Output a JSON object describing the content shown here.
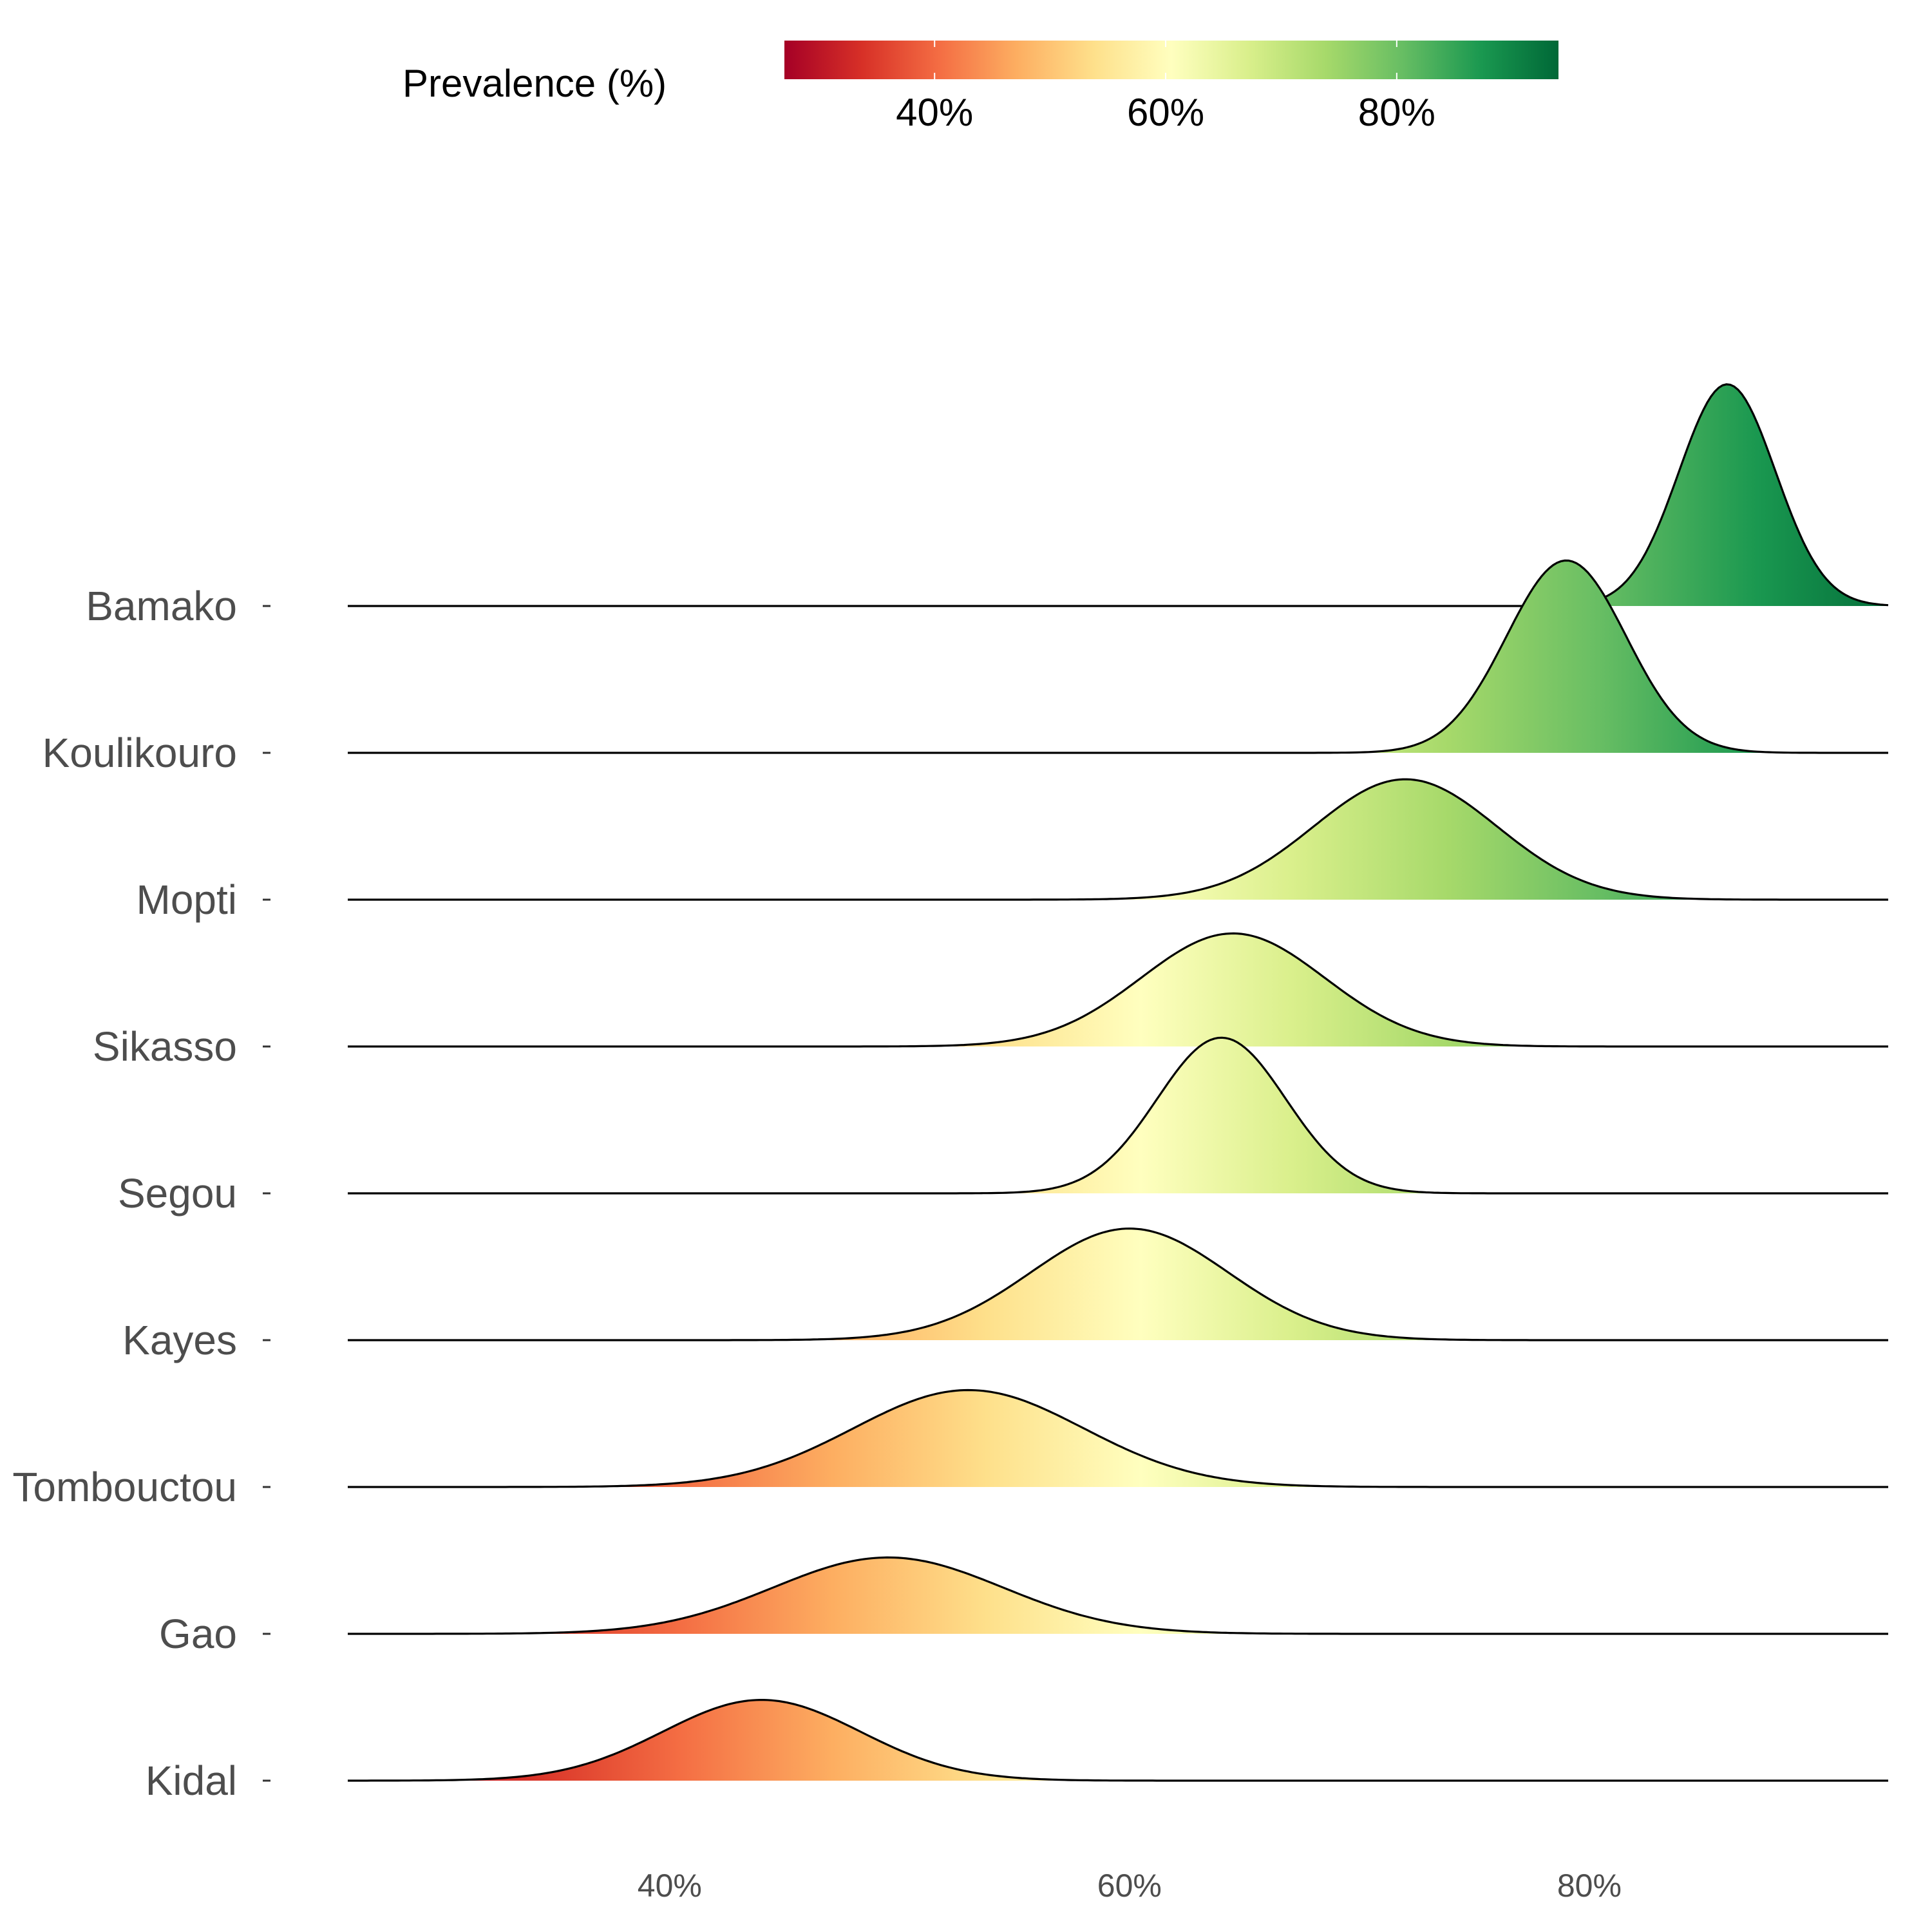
{
  "chart_data": {
    "type": "ridgeline",
    "title": "",
    "xlabel": "",
    "ylabel": "",
    "xlim": [
      26,
      93
    ],
    "x_ticks": [
      {
        "value": 40,
        "label": "40%"
      },
      {
        "value": 60,
        "label": "60%"
      },
      {
        "value": 80,
        "label": "80%"
      }
    ],
    "legend": {
      "title": "Prevalence (%)",
      "position": "top",
      "range": [
        27,
        94
      ],
      "ticks": [
        {
          "value": 40,
          "label": "40%"
        },
        {
          "value": 60,
          "label": "60%"
        },
        {
          "value": 80,
          "label": "80%"
        }
      ],
      "colors": [
        "#a50026",
        "#d73027",
        "#f46d43",
        "#fdae61",
        "#fee08b",
        "#ffffbf",
        "#d9ef8b",
        "#a6d96a",
        "#66bd63",
        "#1a9850",
        "#006837"
      ]
    },
    "series": [
      {
        "name": "Kidal",
        "peak": 44,
        "sd": 4.3,
        "height": 0.55
      },
      {
        "name": "Gao",
        "peak": 49.5,
        "sd": 5.0,
        "height": 0.52
      },
      {
        "name": "Tombouctou",
        "peak": 53,
        "sd": 5.0,
        "height": 0.66
      },
      {
        "name": "Kayes",
        "peak": 60,
        "sd": 4.3,
        "height": 0.76
      },
      {
        "name": "Segou",
        "peak": 64,
        "sd": 2.8,
        "height": 1.06
      },
      {
        "name": "Sikasso",
        "peak": 64.5,
        "sd": 4.0,
        "height": 0.77
      },
      {
        "name": "Mopti",
        "peak": 72,
        "sd": 4.0,
        "height": 0.82
      },
      {
        "name": "Koulikouro",
        "peak": 79,
        "sd": 2.6,
        "height": 1.31
      },
      {
        "name": "Bamako",
        "peak": 86,
        "sd": 2.1,
        "height": 1.51
      }
    ]
  }
}
